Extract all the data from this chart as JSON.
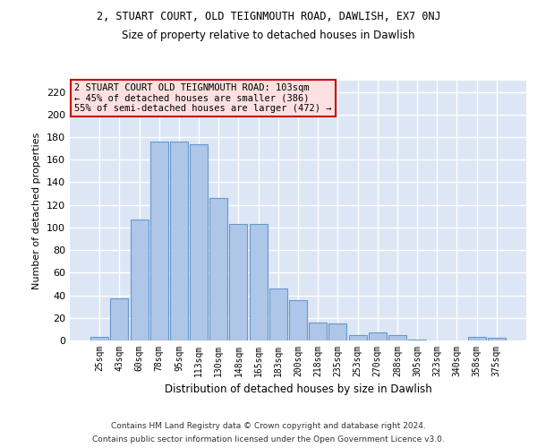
{
  "title": "2, STUART COURT, OLD TEIGNMOUTH ROAD, DAWLISH, EX7 0NJ",
  "subtitle": "Size of property relative to detached houses in Dawlish",
  "xlabel": "Distribution of detached houses by size in Dawlish",
  "ylabel": "Number of detached properties",
  "categories": [
    "25sqm",
    "43sqm",
    "60sqm",
    "78sqm",
    "95sqm",
    "113sqm",
    "130sqm",
    "148sqm",
    "165sqm",
    "183sqm",
    "200sqm",
    "218sqm",
    "235sqm",
    "253sqm",
    "270sqm",
    "288sqm",
    "305sqm",
    "323sqm",
    "340sqm",
    "358sqm",
    "375sqm"
  ],
  "values": [
    3,
    37,
    107,
    176,
    176,
    174,
    126,
    103,
    103,
    46,
    36,
    16,
    15,
    5,
    7,
    5,
    1,
    0,
    0,
    3,
    2
  ],
  "bar_color": "#aec6e8",
  "bar_edge_color": "#6699cc",
  "bg_color": "#dce6f5",
  "grid_color": "#ffffff",
  "ylim": [
    0,
    230
  ],
  "yticks": [
    0,
    20,
    40,
    60,
    80,
    100,
    120,
    140,
    160,
    180,
    200,
    220
  ],
  "annotation_box_text": "2 STUART COURT OLD TEIGNMOUTH ROAD: 103sqm\n← 45% of detached houses are smaller (386)\n55% of semi-detached houses are larger (472) →",
  "annotation_box_color": "#ffe0e0",
  "annotation_box_edge": "#cc0000",
  "footnote1": "Contains HM Land Registry data © Crown copyright and database right 2024.",
  "footnote2": "Contains public sector information licensed under the Open Government Licence v3.0."
}
